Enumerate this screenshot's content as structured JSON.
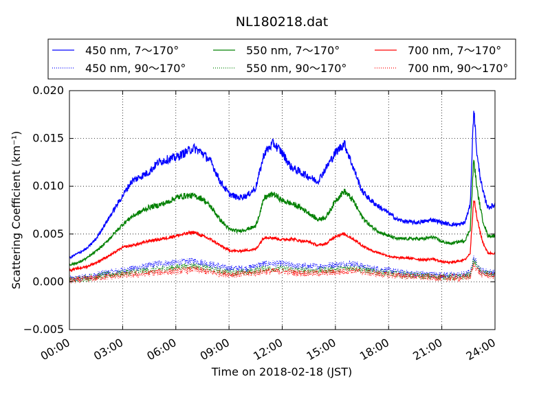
{
  "chart_data": {
    "type": "line",
    "title": "NL180218.dat",
    "xlabel": "Time on 2018-02-18 (JST)",
    "ylabel": "Scattering Coefficient (km⁻¹)",
    "x_ticks": [
      "00:00",
      "03:00",
      "06:00",
      "09:00",
      "12:00",
      "15:00",
      "18:00",
      "21:00",
      "24:00"
    ],
    "x_tick_hours": [
      0,
      3,
      6,
      9,
      12,
      15,
      18,
      21,
      24
    ],
    "y_ticks": [
      "−0.005",
      "0.000",
      "0.005",
      "0.010",
      "0.015",
      "0.020"
    ],
    "y_tick_values": [
      -0.005,
      0.0,
      0.005,
      0.01,
      0.015,
      0.02
    ],
    "xlim_hours": [
      0,
      24
    ],
    "ylim": [
      -0.005,
      0.02
    ],
    "grid": true,
    "legend_position": "top, outside axes, 3 columns",
    "series": [
      {
        "name": "450 nm, 7～170°",
        "color": "#0000ff",
        "style": "solid",
        "x_hours": [
          0,
          0.5,
          1,
          1.5,
          2,
          2.5,
          3,
          3.5,
          4,
          4.5,
          5,
          5.5,
          6,
          6.5,
          7,
          7.5,
          8,
          8.5,
          9,
          9.5,
          10,
          10.5,
          11,
          11.5,
          12,
          12.5,
          13,
          13.5,
          14,
          14.5,
          15,
          15.5,
          16,
          16.5,
          17,
          17.5,
          18,
          18.5,
          19,
          19.5,
          20,
          20.5,
          21,
          21.5,
          22,
          22.3,
          22.6,
          22.8,
          23,
          23.3,
          23.6,
          24
        ],
        "values": [
          0.0025,
          0.003,
          0.0035,
          0.0045,
          0.006,
          0.0075,
          0.009,
          0.0105,
          0.011,
          0.0115,
          0.0125,
          0.0128,
          0.013,
          0.0135,
          0.014,
          0.0135,
          0.0125,
          0.0105,
          0.0092,
          0.0088,
          0.009,
          0.0098,
          0.0135,
          0.0145,
          0.0135,
          0.012,
          0.0115,
          0.011,
          0.0105,
          0.012,
          0.0135,
          0.0145,
          0.012,
          0.0095,
          0.0085,
          0.0078,
          0.0072,
          0.0065,
          0.0063,
          0.0062,
          0.0063,
          0.0065,
          0.0062,
          0.006,
          0.006,
          0.0062,
          0.008,
          0.0182,
          0.013,
          0.0095,
          0.0078,
          0.008
        ]
      },
      {
        "name": "450 nm, 90～170°",
        "color": "#0000ff",
        "style": "dotted",
        "x_hours": [
          0,
          1,
          2,
          3,
          4,
          5,
          6,
          7,
          8,
          9,
          10,
          11,
          12,
          13,
          14,
          15,
          16,
          17,
          18,
          19,
          20,
          21,
          22,
          22.6,
          22.8,
          23.2,
          24
        ],
        "values": [
          0.0003,
          0.0005,
          0.0009,
          0.0012,
          0.0015,
          0.0019,
          0.002,
          0.0022,
          0.0018,
          0.0014,
          0.0014,
          0.0019,
          0.0019,
          0.0016,
          0.0016,
          0.0018,
          0.0019,
          0.0014,
          0.0012,
          0.0009,
          0.0008,
          0.0007,
          0.0007,
          0.0009,
          0.0025,
          0.0012,
          0.0009
        ]
      },
      {
        "name": "550 nm, 7～170°",
        "color": "#008000",
        "style": "solid",
        "x_hours": [
          0,
          0.5,
          1,
          1.5,
          2,
          2.5,
          3,
          3.5,
          4,
          4.5,
          5,
          5.5,
          6,
          6.5,
          7,
          7.5,
          8,
          8.5,
          9,
          9.5,
          10,
          10.5,
          11,
          11.5,
          12,
          12.5,
          13,
          13.5,
          14,
          14.5,
          15,
          15.5,
          16,
          16.5,
          17,
          17.5,
          18,
          18.5,
          19,
          19.5,
          20,
          20.5,
          21,
          21.5,
          22,
          22.3,
          22.6,
          22.8,
          23,
          23.3,
          23.6,
          24
        ],
        "values": [
          0.0018,
          0.002,
          0.0025,
          0.0032,
          0.004,
          0.005,
          0.006,
          0.0068,
          0.0073,
          0.0078,
          0.008,
          0.0083,
          0.0088,
          0.009,
          0.009,
          0.0087,
          0.0078,
          0.0065,
          0.0055,
          0.0053,
          0.0055,
          0.0058,
          0.0088,
          0.0092,
          0.0085,
          0.0082,
          0.0078,
          0.0072,
          0.0065,
          0.0068,
          0.0085,
          0.0095,
          0.0085,
          0.0068,
          0.0058,
          0.0052,
          0.0048,
          0.0045,
          0.0045,
          0.0045,
          0.0045,
          0.0047,
          0.0042,
          0.004,
          0.0042,
          0.0043,
          0.0055,
          0.0128,
          0.0095,
          0.0065,
          0.0048,
          0.0048
        ]
      },
      {
        "name": "550 nm, 90～170°",
        "color": "#008000",
        "style": "dotted",
        "x_hours": [
          0,
          1,
          2,
          3,
          4,
          5,
          6,
          7,
          8,
          9,
          10,
          11,
          12,
          13,
          14,
          15,
          16,
          17,
          18,
          19,
          20,
          21,
          22,
          22.6,
          22.8,
          23.2,
          24
        ],
        "values": [
          0.0002,
          0.0004,
          0.0007,
          0.0009,
          0.0011,
          0.0013,
          0.0015,
          0.0017,
          0.0013,
          0.001,
          0.001,
          0.0014,
          0.0014,
          0.0012,
          0.0012,
          0.0013,
          0.0015,
          0.0011,
          0.0009,
          0.0007,
          0.0006,
          0.0005,
          0.0005,
          0.0007,
          0.0022,
          0.001,
          0.0007
        ]
      },
      {
        "name": "700 nm, 7～170°",
        "color": "#ff0000",
        "style": "solid",
        "x_hours": [
          0,
          0.5,
          1,
          1.5,
          2,
          2.5,
          3,
          3.5,
          4,
          4.5,
          5,
          5.5,
          6,
          6.5,
          7,
          7.5,
          8,
          8.5,
          9,
          9.5,
          10,
          10.5,
          11,
          11.5,
          12,
          12.5,
          13,
          13.5,
          14,
          14.5,
          15,
          15.5,
          16,
          16.5,
          17,
          17.5,
          18,
          18.5,
          19,
          19.5,
          20,
          20.5,
          21,
          21.5,
          22,
          22.3,
          22.6,
          22.8,
          23,
          23.3,
          23.6,
          24
        ],
        "values": [
          0.0012,
          0.0014,
          0.0016,
          0.002,
          0.0025,
          0.003,
          0.0036,
          0.0038,
          0.004,
          0.0043,
          0.0044,
          0.0046,
          0.0048,
          0.005,
          0.0052,
          0.0048,
          0.0044,
          0.0038,
          0.0033,
          0.0032,
          0.0033,
          0.0034,
          0.0047,
          0.0046,
          0.0044,
          0.0045,
          0.0043,
          0.0042,
          0.0038,
          0.004,
          0.0048,
          0.005,
          0.0045,
          0.0038,
          0.0033,
          0.003,
          0.0027,
          0.0025,
          0.0025,
          0.0024,
          0.0023,
          0.0024,
          0.0021,
          0.002,
          0.0022,
          0.0023,
          0.003,
          0.0088,
          0.0065,
          0.0042,
          0.003,
          0.003
        ]
      },
      {
        "name": "700 nm, 90～170°",
        "color": "#ff0000",
        "style": "dotted",
        "x_hours": [
          0,
          1,
          2,
          3,
          4,
          5,
          6,
          7,
          8,
          9,
          10,
          11,
          12,
          13,
          14,
          15,
          16,
          17,
          18,
          19,
          20,
          21,
          22,
          22.6,
          22.8,
          23.2,
          24
        ],
        "values": [
          0.0001,
          0.0003,
          0.0005,
          0.0007,
          0.0008,
          0.001,
          0.0011,
          0.0013,
          0.001,
          0.0008,
          0.0008,
          0.0011,
          0.0011,
          0.0009,
          0.0009,
          0.001,
          0.0012,
          0.0009,
          0.0007,
          0.0006,
          0.0005,
          0.0004,
          0.0004,
          0.0005,
          0.0018,
          0.0008,
          0.0006
        ]
      }
    ]
  }
}
